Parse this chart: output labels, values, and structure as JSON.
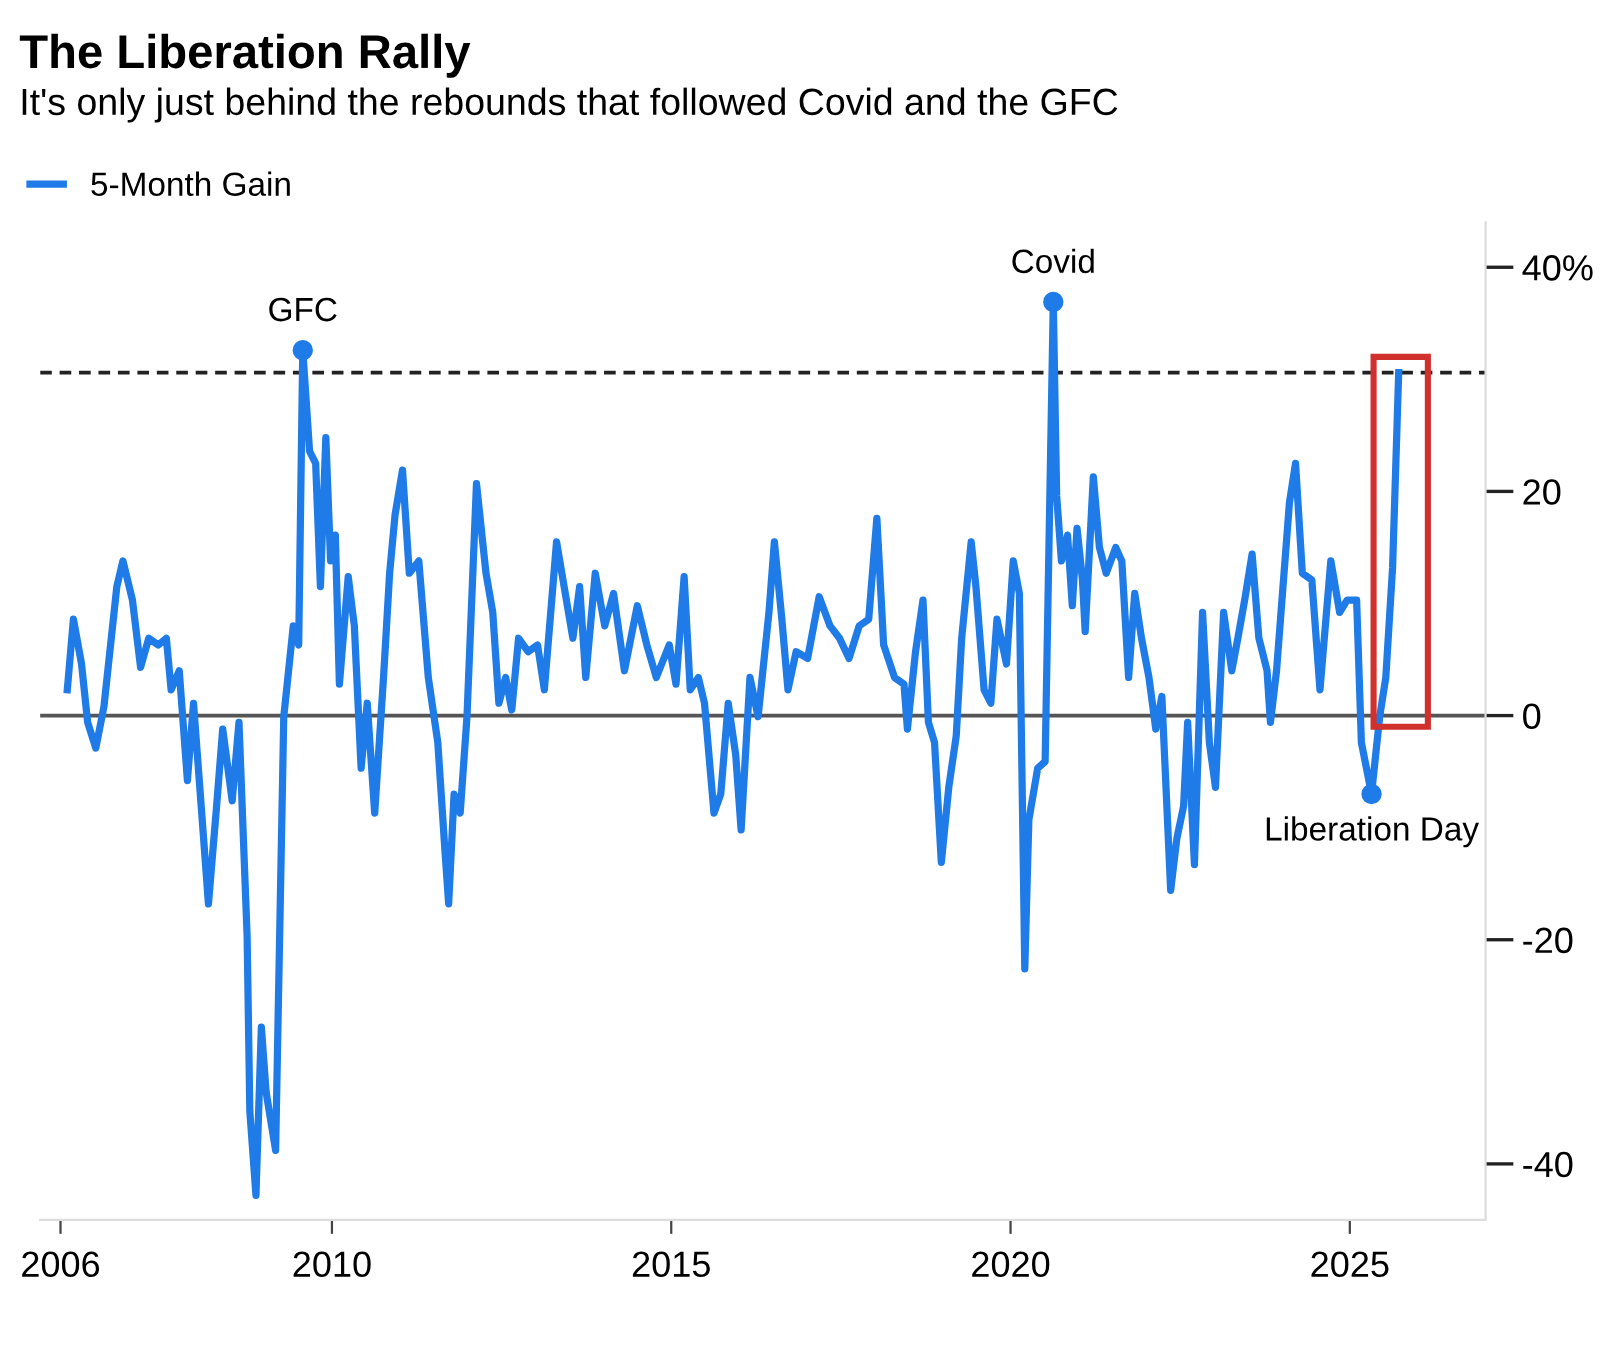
{
  "chart_data": {
    "type": "line",
    "title": "The Liberation Rally",
    "subtitle": "It's only just behind the rebounds that followed Covid and the GFC",
    "series": [
      {
        "name": "5-Month Gain",
        "marker": "none",
        "color": "#1e7be8",
        "x": [
          2006.1,
          2006.19,
          2006.31,
          2006.4,
          2006.52,
          2006.64,
          2006.83,
          2006.92,
          2007.06,
          2007.18,
          2007.3,
          2007.44,
          2007.56,
          2007.63,
          2007.75,
          2007.87,
          2007.96,
          2008.06,
          2008.18,
          2008.3,
          2008.39,
          2008.53,
          2008.63,
          2008.75,
          2008.79,
          2008.88,
          2008.96,
          2009.03,
          2009.17,
          2009.29,
          2009.43,
          2009.51,
          2009.57,
          2009.67,
          2009.76,
          2009.83,
          2009.91,
          2009.98,
          2010.05,
          2010.11,
          2010.24,
          2010.33,
          2010.43,
          2010.52,
          2010.63,
          2010.76,
          2010.85,
          2010.93,
          2011.04,
          2011.14,
          2011.28,
          2011.42,
          2011.56,
          2011.66,
          2011.72,
          2011.8,
          2011.89,
          2011.99,
          2012.13,
          2012.27,
          2012.37,
          2012.46,
          2012.56,
          2012.65,
          2012.75,
          2012.89,
          2013.03,
          2013.13,
          2013.31,
          2013.55,
          2013.65,
          2013.74,
          2013.88,
          2014.02,
          2014.15,
          2014.31,
          2014.5,
          2014.64,
          2014.78,
          2014.97,
          2015.07,
          2015.19,
          2015.28,
          2015.4,
          2015.49,
          2015.63,
          2015.73,
          2015.84,
          2015.95,
          2016.03,
          2016.16,
          2016.28,
          2016.44,
          2016.52,
          2016.63,
          2016.72,
          2016.84,
          2017.01,
          2017.18,
          2017.34,
          2017.48,
          2017.62,
          2017.77,
          2017.91,
          2018.03,
          2018.13,
          2018.29,
          2018.43,
          2018.48,
          2018.6,
          2018.71,
          2018.79,
          2018.88,
          2018.98,
          2019.09,
          2019.2,
          2019.28,
          2019.42,
          2019.49,
          2019.61,
          2019.71,
          2019.8,
          2019.94,
          2020.04,
          2020.13,
          2020.21,
          2020.27,
          2020.4,
          2020.51,
          2020.63,
          2020.68,
          2020.75,
          2020.84,
          2020.91,
          2020.98,
          2021.06,
          2021.1,
          2021.22,
          2021.31,
          2021.41,
          2021.55,
          2021.64,
          2021.74,
          2021.83,
          2021.93,
          2022.04,
          2022.14,
          2022.23,
          2022.36,
          2022.45,
          2022.55,
          2022.61,
          2022.71,
          2022.83,
          2022.93,
          2023.02,
          2023.14,
          2023.26,
          2023.35,
          2023.45,
          2023.56,
          2023.66,
          2023.78,
          2023.83,
          2023.92,
          2024.11,
          2024.2,
          2024.3,
          2024.44,
          2024.56,
          2024.72,
          2024.85,
          2024.96,
          2025.1,
          2025.17,
          2025.32,
          2025.44,
          2025.53,
          2025.63,
          2025.72
        ],
        "values": [
          2.3,
          8.6,
          4.6,
          -0.6,
          -2.9,
          0.8,
          11.5,
          13.8,
          10.3,
          4.3,
          6.9,
          6.3,
          6.9,
          2.3,
          4.0,
          -5.8,
          1.1,
          -7.0,
          -16.8,
          -8.1,
          -1.2,
          -7.6,
          -0.6,
          -19.7,
          -35.3,
          -42.8,
          -27.8,
          -33.6,
          -38.8,
          -0.1,
          8.0,
          6.3,
          32.6,
          23.6,
          22.5,
          11.5,
          24.8,
          13.8,
          16.1,
          2.8,
          12.4,
          8.0,
          -4.7,
          1.1,
          -8.7,
          3.4,
          12.7,
          17.9,
          21.9,
          12.7,
          13.8,
          3.4,
          -2.4,
          -11.6,
          -16.8,
          -7.0,
          -8.7,
          -0.1,
          20.7,
          12.7,
          9.2,
          1.1,
          3.4,
          0.5,
          6.9,
          5.7,
          6.3,
          2.3,
          15.5,
          6.9,
          11.5,
          3.4,
          12.7,
          8.0,
          10.9,
          4.0,
          9.8,
          6.3,
          3.4,
          6.3,
          2.8,
          12.4,
          2.3,
          3.4,
          1.1,
          -8.7,
          -7.0,
          1.1,
          -3.5,
          -10.2,
          3.4,
          -0.1,
          9.2,
          15.5,
          8.6,
          2.3,
          5.7,
          5.1,
          10.6,
          8.0,
          6.9,
          5.1,
          8.0,
          8.6,
          17.6,
          6.3,
          3.4,
          2.8,
          -1.2,
          5.7,
          10.3,
          -0.6,
          -2.4,
          -13.1,
          -6.4,
          -1.8,
          6.9,
          15.5,
          11.5,
          2.3,
          1.1,
          8.6,
          4.6,
          13.8,
          10.9,
          -22.6,
          -9.3,
          -4.7,
          -4.1,
          36.9,
          19.6,
          13.8,
          16.1,
          9.8,
          16.7,
          12.1,
          7.5,
          21.3,
          15.0,
          12.7,
          15.0,
          13.8,
          3.4,
          10.9,
          6.9,
          3.4,
          -1.2,
          1.7,
          -15.6,
          -11.0,
          -8.1,
          -0.6,
          -13.3,
          9.2,
          -2.4,
          -6.4,
          9.2,
          4.0,
          6.9,
          10.3,
          14.4,
          6.9,
          4.0,
          -0.6,
          4.0,
          19.0,
          22.5,
          12.7,
          12.1,
          2.3,
          13.8,
          9.2,
          10.3,
          10.3,
          -2.4,
          -7.0,
          -0.1,
          3.4,
          13.2,
          30.6
        ]
      },
      {
        "type": "scatter",
        "marker": "circle",
        "color": "#1e7be8",
        "x": [
          2009.57,
          2020.63,
          2025.32
        ],
        "values": [
          32.6,
          36.9,
          -7.0
        ]
      }
    ],
    "xlim": [
      2005.7,
      2027
    ],
    "xticks": [
      2006,
      2010,
      2015,
      2020,
      2025
    ],
    "ylim": [
      -45,
      44
    ],
    "yticks": [
      {
        "value": 40,
        "label": "40%"
      },
      20,
      0,
      -20,
      -40
    ],
    "ref_lines": [
      {
        "axis": "y",
        "value": 30.6,
        "color": "#222222",
        "line_style": "dashed"
      },
      {
        "axis": "y",
        "value": 0,
        "color": "#555555",
        "line_style": "solid"
      }
    ],
    "annotations": [
      {
        "text": "GFC",
        "x": 2009.57,
        "y": 32.6
      },
      {
        "text": "Covid",
        "x": 2020.63,
        "y": 36.9
      },
      {
        "text": "Liberation Day",
        "x": 2025.32,
        "y": -7.0
      }
    ],
    "legend": "top left",
    "grid": false,
    "line_style": "solid"
  }
}
